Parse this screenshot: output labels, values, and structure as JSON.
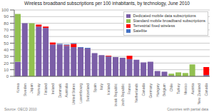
{
  "chart_data": {
    "type": "bar",
    "title": "Wireless broadband subscriptions per 100 inhabitants, by technology, June 2010",
    "categories": [
      "Korea",
      "Sweden",
      "Japan",
      "Norway",
      "Finland",
      "Ireland",
      "Denmark",
      "Australia",
      "United States",
      "Luxembourg",
      "Switzerland",
      "Spain",
      "Italy",
      "Iceland",
      "Slovak Republic",
      "Czech Republic",
      "France",
      "Netherlands",
      "Canada",
      "Germany",
      "Hungary",
      "Belgium",
      "Chile",
      "Turkey",
      "Mexico",
      "Austria",
      "New Zealand",
      "Canada"
    ],
    "series": [
      {
        "name": "Dedicated mobile data subscriptions",
        "color": "#7B5EA7",
        "values": [
          22,
          80,
          0,
          75,
          73,
          48,
          48,
          46,
          44,
          43,
          42,
          35,
          32,
          30,
          29,
          28,
          26,
          25,
          21,
          22,
          8,
          7,
          1,
          0,
          0,
          0,
          0,
          2
        ]
      },
      {
        "name": "Standard mobile broadband subscriptions",
        "color": "#92C050",
        "values": [
          72,
          0,
          80,
          0,
          0,
          0,
          0,
          0,
          0,
          0,
          0,
          0,
          0,
          0,
          0,
          0,
          0,
          0,
          0,
          0,
          0,
          0,
          3,
          6,
          5,
          18,
          0,
          0
        ]
      },
      {
        "name": "Terrestrial fixed wireless",
        "color": "#FF0000",
        "values": [
          0,
          0,
          0,
          3,
          2,
          3,
          0,
          1,
          5,
          0,
          0,
          0,
          0,
          1,
          0,
          0,
          5,
          0,
          0,
          0,
          0,
          0,
          0,
          0,
          0,
          0,
          0,
          12
        ]
      },
      {
        "name": "Satellite",
        "color": "#4472C4",
        "values": [
          0,
          0,
          0,
          0,
          0,
          0,
          1,
          1,
          1,
          1,
          1,
          0,
          0,
          0,
          0,
          0,
          0,
          0,
          0,
          0,
          0,
          0,
          0,
          0,
          0,
          0,
          0,
          0
        ]
      }
    ],
    "stacked": true,
    "ylim": [
      0,
      100
    ],
    "yticks": [
      0,
      10,
      20,
      30,
      40,
      50,
      60,
      70,
      80,
      90,
      100
    ],
    "grid": true,
    "legend": "upper right",
    "annotations": [
      "Source: OECD 2010",
      "Countries with partial data"
    ]
  }
}
